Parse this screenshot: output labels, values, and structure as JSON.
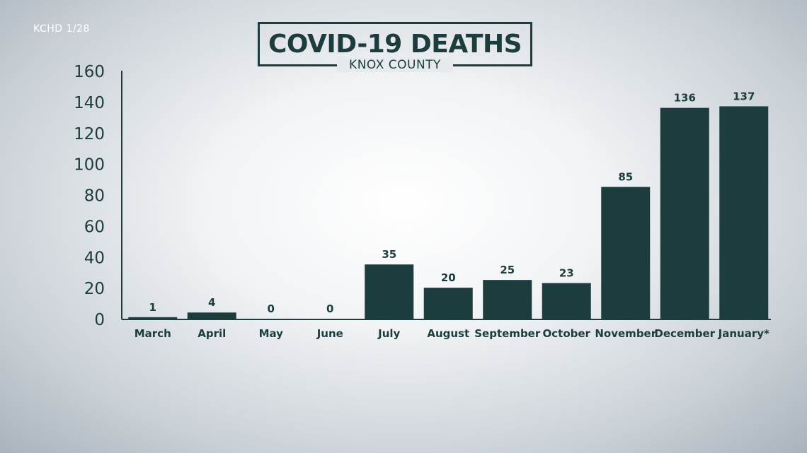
{
  "source_label": "KCHD 1/28",
  "chart_data": {
    "type": "bar",
    "title": "COVID-19 DEATHS",
    "subtitle": "KNOX COUNTY",
    "categories": [
      "March",
      "April",
      "May",
      "June",
      "July",
      "August",
      "September",
      "October",
      "November",
      "December",
      "January*"
    ],
    "values": [
      1,
      4,
      0,
      0,
      35,
      20,
      25,
      23,
      85,
      136,
      137
    ],
    "ylim": [
      0,
      160
    ],
    "yticks": [
      0,
      20,
      40,
      60,
      80,
      100,
      120,
      140,
      160
    ],
    "grid": false,
    "bar_color": "#1d3c3d",
    "text_color": "#1d3c3d"
  }
}
